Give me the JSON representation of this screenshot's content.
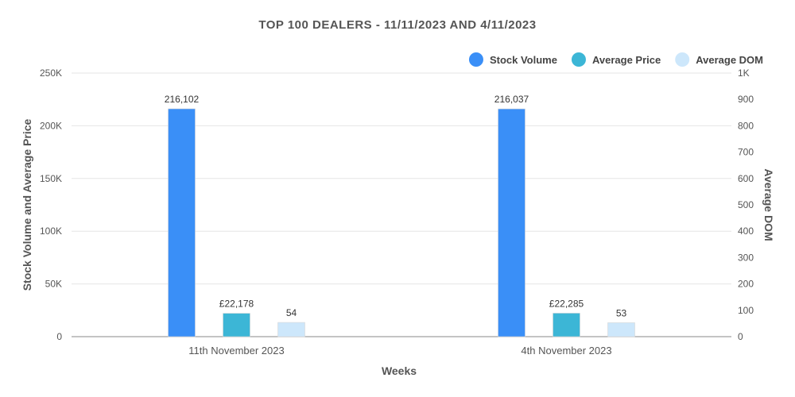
{
  "chart_data": {
    "type": "bar",
    "title": "TOP 100 DEALERS - 11/11/2023 AND 4/11/2023",
    "xlabel": "Weeks",
    "ylabel": "Stock Volume and Average Price",
    "y2label": "Average DOM",
    "categories": [
      "11th November 2023",
      "4th November 2023"
    ],
    "ylim": [
      0,
      250000
    ],
    "yticks": [
      "0",
      "50K",
      "100K",
      "150K",
      "200K",
      "250K"
    ],
    "y2lim": [
      0,
      1000
    ],
    "y2ticks": [
      "0",
      "100",
      "200",
      "300",
      "400",
      "500",
      "600",
      "700",
      "800",
      "900",
      "1K"
    ],
    "grid": true,
    "legend_position": "top-right",
    "series": [
      {
        "name": "Stock Volume",
        "axis": "left",
        "color": "#3a8ff7",
        "values": [
          216102,
          216037
        ],
        "labels": [
          "216,102",
          "216,037"
        ]
      },
      {
        "name": "Average Price",
        "axis": "left",
        "color": "#3cb6d6",
        "values": [
          22178,
          22285
        ],
        "labels": [
          "£22,178",
          "£22,285"
        ]
      },
      {
        "name": "Average DOM",
        "axis": "right",
        "color": "#cde7fb",
        "values": [
          54,
          53
        ],
        "labels": [
          "54",
          "53"
        ]
      }
    ]
  }
}
